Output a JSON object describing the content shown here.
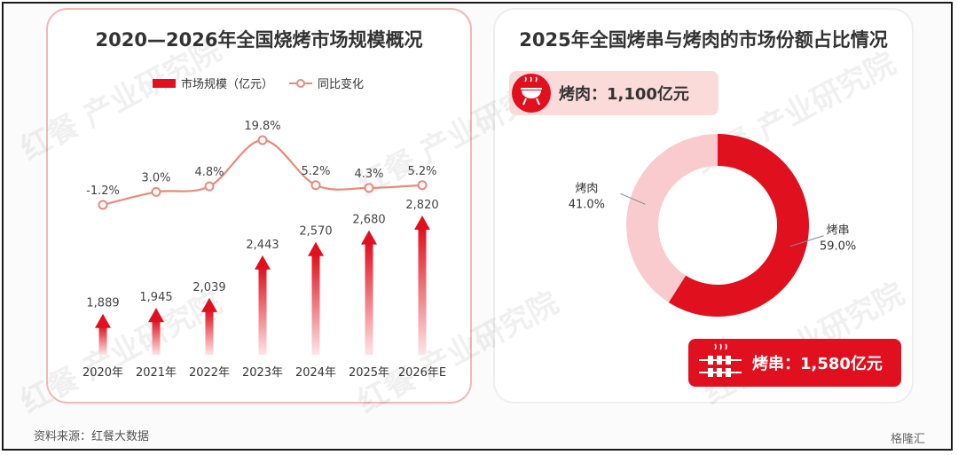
{
  "left_panel": {
    "title": "2020—2026年全国烧烤市场规模概况"
  },
  "right_panel": {
    "title": "2025年全国烤串与烤肉的市场份额占比情况"
  },
  "source": "资料来源：红餐大数据",
  "watermark": "红餐 产业研究院",
  "corner_logo": "格隆汇",
  "tags": {
    "meat": {
      "label": "烤肉：1,100亿元",
      "icon": "grill-icon"
    },
    "skewer": {
      "label": "烤串：1,580亿元",
      "icon": "skewer-icon"
    }
  },
  "colors": {
    "red": "#e0101e",
    "bar_light": "#f8c4c8",
    "line": "#e88a7a",
    "pie_light": "#f9cbcf",
    "pie_dark": "#e0101e"
  },
  "chart_data": [
    {
      "type": "bar",
      "title": "2020—2026年全国烧烤市场规模概况",
      "categories": [
        "2020年",
        "2021年",
        "2022年",
        "2023年",
        "2024年",
        "2025年",
        "2026年E"
      ],
      "legend": [
        "市场规模（亿元）",
        "同比变化"
      ],
      "legend_position": "top",
      "series": [
        {
          "name": "市场规模（亿元）",
          "type": "bar",
          "values": [
            1889,
            1945,
            2039,
            2443,
            2570,
            2680,
            2820
          ],
          "labels": [
            "1,889",
            "1,945",
            "2,039",
            "2,443",
            "2,570",
            "2,680",
            "2,820"
          ]
        },
        {
          "name": "同比变化",
          "type": "line",
          "values": [
            -1.2,
            3.0,
            4.8,
            19.8,
            5.2,
            4.3,
            5.2
          ],
          "labels": [
            "-1.2%",
            "3.0%",
            "4.8%",
            "19.8%",
            "5.2%",
            "4.3%",
            "5.2%"
          ]
        }
      ],
      "grid": false
    },
    {
      "type": "pie",
      "title": "2025年全国烤串与烤肉的市场份额占比情况",
      "donut": true,
      "slices": [
        {
          "name": "烤串",
          "value": 59.0,
          "label": "59.0%"
        },
        {
          "name": "烤肉",
          "value": 41.0,
          "label": "41.0%"
        }
      ]
    }
  ]
}
